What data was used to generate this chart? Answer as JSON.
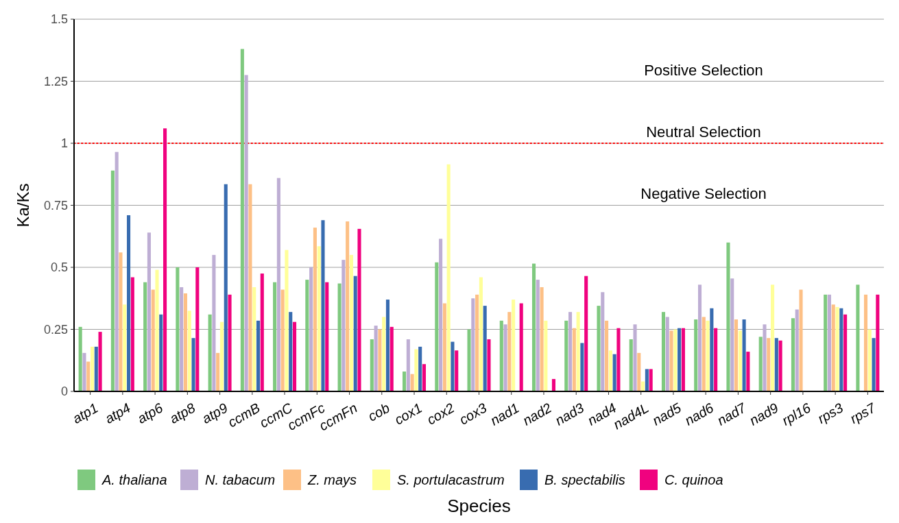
{
  "chart_data": {
    "type": "bar",
    "xlabel": "Species",
    "ylabel": "Ka/Ks",
    "categories": [
      "atp1",
      "atp4",
      "atp6",
      "atp8",
      "atp9",
      "ccmB",
      "ccmC",
      "ccmFc",
      "ccmFn",
      "cob",
      "cox1",
      "cox2",
      "cox3",
      "nad1",
      "nad2",
      "nad3",
      "nad4",
      "nad4L",
      "nad5",
      "nad6",
      "nad7",
      "nad9",
      "rpl16",
      "rps3",
      "rps7"
    ],
    "series": [
      {
        "name": "A. thaliana",
        "color": "#7fc97f",
        "values": [
          0.26,
          0.89,
          0.44,
          0.5,
          0.31,
          1.38,
          0.44,
          0.45,
          0.435,
          0.21,
          0.08,
          0.52,
          0.25,
          0.285,
          0.515,
          0.285,
          0.345,
          0.21,
          0.32,
          0.29,
          0.6,
          0.22,
          0.295,
          0.39,
          0.43
        ]
      },
      {
        "name": "N. tabacum",
        "color": "#beaed4",
        "values": [
          0.155,
          0.965,
          0.64,
          0.42,
          0.55,
          1.275,
          0.86,
          0.5,
          0.53,
          0.265,
          0.21,
          0.615,
          0.375,
          0.27,
          0.45,
          0.32,
          0.4,
          0.27,
          0.3,
          0.43,
          0.455,
          0.27,
          0.33,
          0.39,
          null
        ]
      },
      {
        "name": "Z. mays",
        "color": "#fdc086",
        "values": [
          0.12,
          0.56,
          0.41,
          0.395,
          0.155,
          0.835,
          0.41,
          0.66,
          0.685,
          0.25,
          0.07,
          0.355,
          0.39,
          0.32,
          0.42,
          0.255,
          0.285,
          0.155,
          0.245,
          0.3,
          0.29,
          0.215,
          0.41,
          0.35,
          0.39
        ]
      },
      {
        "name": "S. portulacastrum",
        "color": "#ffff99",
        "values": [
          0.18,
          0.35,
          0.49,
          0.325,
          0.28,
          0.42,
          0.57,
          0.585,
          0.55,
          0.3,
          0.17,
          0.915,
          0.46,
          0.37,
          0.285,
          0.32,
          0.165,
          0.04,
          0.25,
          0.285,
          0.245,
          0.43,
          null,
          0.34,
          0.25
        ]
      },
      {
        "name": "B. spectabilis",
        "color": "#386cb0",
        "values": [
          0.18,
          0.71,
          0.31,
          0.215,
          0.835,
          0.285,
          0.32,
          0.69,
          0.465,
          0.37,
          0.18,
          0.2,
          0.345,
          null,
          null,
          0.195,
          0.15,
          0.09,
          0.255,
          0.335,
          0.29,
          0.215,
          null,
          0.335,
          0.215
        ]
      },
      {
        "name": "C. quinoa",
        "color": "#f0027f",
        "values": [
          0.24,
          0.46,
          1.06,
          0.5,
          0.39,
          0.475,
          0.28,
          0.44,
          0.655,
          0.26,
          0.11,
          0.165,
          0.21,
          0.355,
          0.05,
          0.465,
          0.255,
          0.09,
          0.255,
          0.255,
          0.16,
          0.205,
          null,
          0.31,
          0.39
        ]
      }
    ],
    "ylim": [
      0,
      1.5
    ],
    "yticks": [
      0,
      0.25,
      0.5,
      0.75,
      1,
      1.25,
      1.5
    ],
    "grid": "y",
    "legend": "bottom",
    "ref_lines": [
      {
        "axis": "y",
        "value": 1,
        "color": "#ff0000",
        "line_style": "dotted"
      }
    ],
    "annotations": [
      "Positive Selection",
      "Neutral Selection",
      "Negative Selection"
    ]
  }
}
